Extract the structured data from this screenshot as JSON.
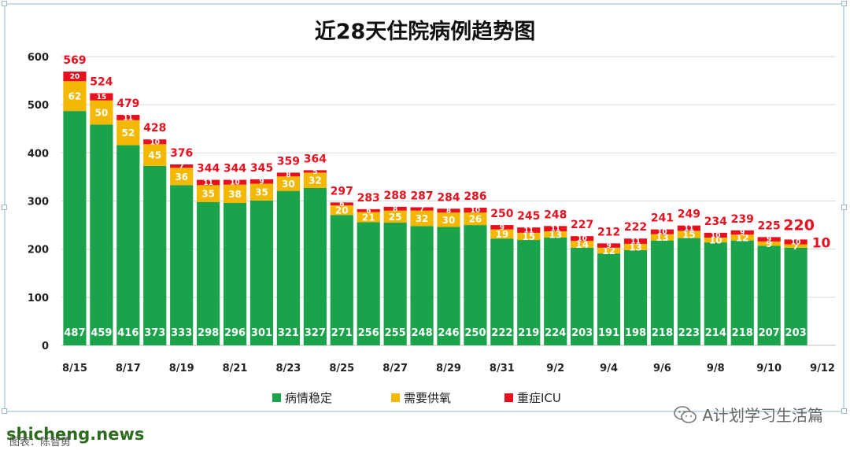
{
  "chart_data": {
    "type": "bar",
    "stacked": true,
    "title": "近28天住院病例趋势图",
    "categories": [
      "8/15",
      "8/16",
      "8/17",
      "8/18",
      "8/19",
      "8/20",
      "8/21",
      "8/22",
      "8/23",
      "8/24",
      "8/25",
      "8/26",
      "8/27",
      "8/28",
      "8/29",
      "8/30",
      "8/31",
      "9/1",
      "9/2",
      "9/3",
      "9/4",
      "9/5",
      "9/6",
      "9/7",
      "9/8",
      "9/9",
      "9/10",
      "9/11",
      "9/12"
    ],
    "x_tick_labels": [
      "8/15",
      "8/17",
      "8/19",
      "8/21",
      "8/23",
      "8/25",
      "8/27",
      "8/29",
      "8/31",
      "9/2",
      "9/4",
      "9/6",
      "9/8",
      "9/10",
      "9/12"
    ],
    "series": [
      {
        "name": "病情稳定",
        "color": "#1aa34a",
        "values": [
          487,
          459,
          416,
          373,
          333,
          298,
          296,
          301,
          321,
          327,
          271,
          256,
          255,
          248,
          246,
          250,
          222,
          219,
          224,
          203,
          191,
          198,
          218,
          223,
          214,
          218,
          207,
          203,
          null
        ]
      },
      {
        "name": "需要供氧",
        "color": "#f5b800",
        "values": [
          62,
          50,
          52,
          45,
          36,
          35,
          38,
          35,
          30,
          32,
          20,
          21,
          25,
          32,
          30,
          26,
          19,
          15,
          13,
          14,
          12,
          13,
          13,
          15,
          10,
          12,
          9,
          7,
          null
        ]
      },
      {
        "name": "重症ICU",
        "color": "#e8101e",
        "values": [
          20,
          15,
          11,
          10,
          7,
          11,
          10,
          9,
          8,
          5,
          6,
          6,
          8,
          7,
          8,
          10,
          9,
          11,
          11,
          10,
          9,
          11,
          10,
          11,
          10,
          9,
          9,
          10,
          null
        ]
      }
    ],
    "totals": [
      569,
      524,
      479,
      428,
      376,
      344,
      344,
      345,
      359,
      364,
      297,
      283,
      288,
      287,
      284,
      286,
      250,
      245,
      248,
      227,
      212,
      222,
      241,
      249,
      234,
      239,
      225,
      220,
      null
    ],
    "ylim": [
      0,
      600
    ],
    "yticks": [
      0,
      100,
      200,
      300,
      400,
      500,
      600
    ],
    "grid": true,
    "legend_position": "bottom"
  },
  "colors": {
    "stable": "#1aa34a",
    "oxygen": "#f5b800",
    "icu": "#e8101e",
    "total_label": "#e8101e",
    "grid": "#d9d9d9"
  },
  "footer": {
    "watermark": "shicheng.news",
    "caption": "图表：陈智勇",
    "brand": "A计划学习生活篇",
    "brand_icon": "wechat-icon"
  }
}
